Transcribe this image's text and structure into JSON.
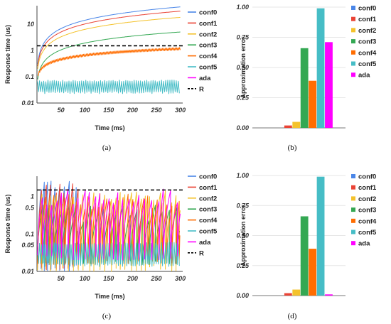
{
  "figure": {
    "captions": [
      "(a)",
      "(b)",
      "(c)",
      "(d)"
    ]
  },
  "chart_data": [
    {
      "panel": "a",
      "type": "line",
      "xlabel": "Time (ms)",
      "ylabel": "Response time (us)",
      "xlim": [
        0,
        305
      ],
      "ylim": [
        0.01,
        50
      ],
      "yscale": "log",
      "xticks": [
        50,
        100,
        150,
        200,
        250,
        300
      ],
      "yticks": [
        0.01,
        0.1,
        1,
        10
      ],
      "ytick_labels": [
        "0.01",
        "0.1",
        "1",
        "10"
      ],
      "legend_position": "right",
      "series": [
        {
          "name": "conf0",
          "color": "#4a86e8",
          "style": "log-growth",
          "start": 0.3,
          "end": 45
        },
        {
          "name": "conf1",
          "color": "#ea4335",
          "style": "log-growth",
          "start": 0.25,
          "end": 31
        },
        {
          "name": "conf2",
          "color": "#f4c22b",
          "style": "log-growth",
          "start": 0.2,
          "end": 18
        },
        {
          "name": "conf3",
          "color": "#34a853",
          "style": "log-growth",
          "start": 0.08,
          "end": 5
        },
        {
          "name": "conf4",
          "color": "#ff6d01",
          "style": "sawtooth-growth",
          "start": 0.1,
          "end": 1.15
        },
        {
          "name": "conf5",
          "color": "#46bdc6",
          "style": "oscillating",
          "low": 0.025,
          "high": 0.075
        },
        {
          "name": "ada",
          "color": "#ff00ff",
          "style": "none"
        },
        {
          "name": "R",
          "color": "#000000",
          "style": "dashed",
          "value": 1.5
        }
      ]
    },
    {
      "panel": "b",
      "type": "bar",
      "ylabel": "Approximation error",
      "ylim": [
        0,
        1.0
      ],
      "yticks": [
        0.0,
        0.25,
        0.5,
        0.75,
        1.0
      ],
      "ytick_labels": [
        "0.00",
        "0.25",
        "0.50",
        "0.75",
        "1.00"
      ],
      "legend_position": "right",
      "series": [
        {
          "name": "conf0",
          "color": "#4a86e8",
          "value": 0.0
        },
        {
          "name": "conf1",
          "color": "#ea4335",
          "value": 0.02
        },
        {
          "name": "conf2",
          "color": "#f4c22b",
          "value": 0.05
        },
        {
          "name": "conf3",
          "color": "#34a853",
          "value": 0.66
        },
        {
          "name": "conf4",
          "color": "#ff6d01",
          "value": 0.39
        },
        {
          "name": "conf5",
          "color": "#46bdc6",
          "value": 0.99
        },
        {
          "name": "ada",
          "color": "#ff00ff",
          "value": 0.71
        }
      ]
    },
    {
      "panel": "c",
      "type": "line",
      "xlabel": "Time (ms)",
      "ylabel": "Response time (us)",
      "xlim": [
        0,
        305
      ],
      "ylim": [
        0.01,
        3.5
      ],
      "yscale": "log",
      "xticks": [
        50,
        100,
        150,
        200,
        250,
        300
      ],
      "yticks": [
        0.01,
        0.05,
        0.1,
        0.5,
        1
      ],
      "ytick_labels": [
        "0.01",
        "0.05",
        "0.1",
        "0.5",
        "1"
      ],
      "legend_position": "right",
      "series": [
        {
          "name": "conf0",
          "color": "#4a86e8",
          "style": "reset-sawtooth",
          "period": 9,
          "low": 0.01,
          "high": 3,
          "seed": 11,
          "xmax": 85
        },
        {
          "name": "conf1",
          "color": "#ea4335",
          "style": "reset-sawtooth",
          "period": 10,
          "low": 0.01,
          "high": 2.5,
          "seed": 23,
          "xmax": 90
        },
        {
          "name": "conf2",
          "color": "#f4c22b",
          "style": "reset-sawtooth",
          "period": 11,
          "low": 0.01,
          "high": 1.5,
          "seed": 37,
          "xmax": 300
        },
        {
          "name": "conf3",
          "color": "#34a853",
          "style": "reset-sawtooth",
          "period": 14,
          "low": 0.015,
          "high": 0.6,
          "seed": 41,
          "xmax": 300
        },
        {
          "name": "conf4",
          "color": "#ff6d01",
          "style": "reset-sawtooth",
          "period": 9,
          "low": 0.015,
          "high": 1.2,
          "seed": 53,
          "xmax": 300
        },
        {
          "name": "conf5",
          "color": "#46bdc6",
          "style": "oscillating",
          "low": 0.015,
          "high": 0.06
        },
        {
          "name": "ada",
          "color": "#ff00ff",
          "style": "reset-sawtooth",
          "period": 12,
          "low": 0.02,
          "high": 1.6,
          "seed": 67,
          "xmax": 300
        },
        {
          "name": "R",
          "color": "#000000",
          "style": "dashed",
          "value": 1.5
        }
      ]
    },
    {
      "panel": "d",
      "type": "bar",
      "ylabel": "Approximation error",
      "ylim": [
        0,
        1.0
      ],
      "yticks": [
        0.0,
        0.25,
        0.5,
        0.75,
        1.0
      ],
      "ytick_labels": [
        "0.00",
        "0.25",
        "0.50",
        "0.75",
        "1.00"
      ],
      "legend_position": "right",
      "series": [
        {
          "name": "conf0",
          "color": "#4a86e8",
          "value": 0.0
        },
        {
          "name": "conf1",
          "color": "#ea4335",
          "value": 0.02
        },
        {
          "name": "conf2",
          "color": "#f4c22b",
          "value": 0.05
        },
        {
          "name": "conf3",
          "color": "#34a853",
          "value": 0.66
        },
        {
          "name": "conf4",
          "color": "#ff6d01",
          "value": 0.39
        },
        {
          "name": "conf5",
          "color": "#46bdc6",
          "value": 0.99
        },
        {
          "name": "ada",
          "color": "#ff00ff",
          "value": 0.01
        }
      ]
    }
  ]
}
